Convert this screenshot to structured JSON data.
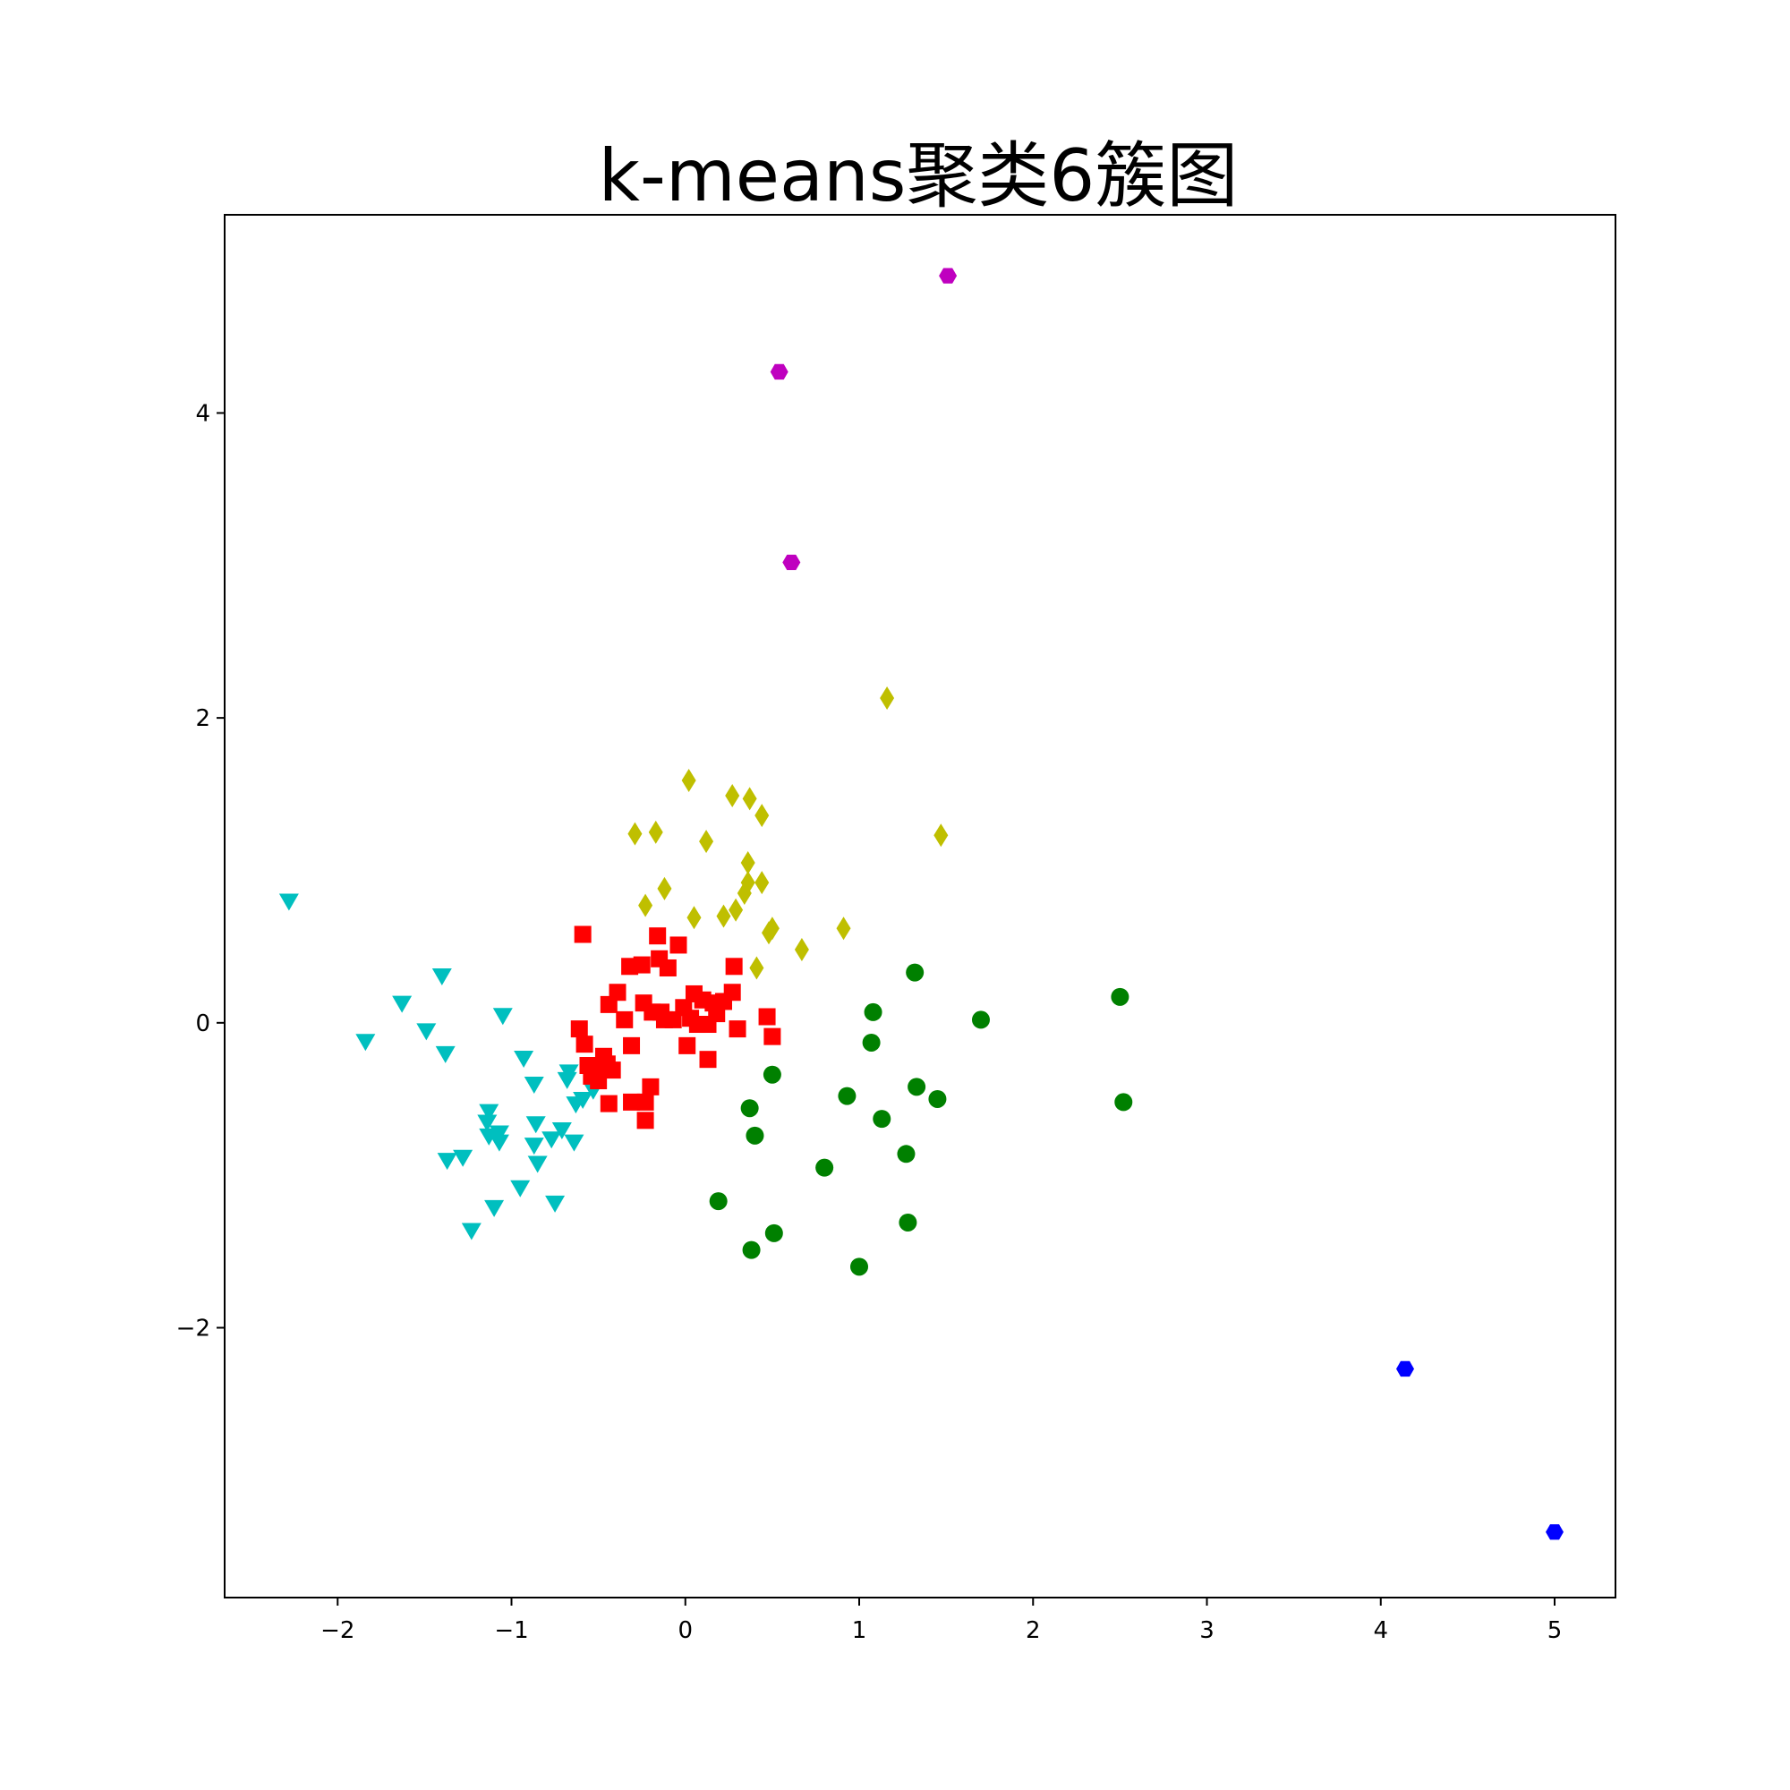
{
  "chart_data": {
    "type": "scatter",
    "title": "k-means聚类6簇图",
    "xlabel": "",
    "ylabel": "",
    "xlim": [
      -2.65,
      5.35
    ],
    "ylim": [
      -3.77,
      5.3
    ],
    "xticks": [
      -2,
      -1,
      0,
      1,
      2,
      3,
      4,
      5
    ],
    "xtick_labels": [
      "−2",
      "−1",
      "0",
      "1",
      "2",
      "3",
      "4",
      "5"
    ],
    "yticks": [
      -2,
      0,
      2,
      4
    ],
    "ytick_labels": [
      "−2",
      "0",
      "2",
      "4"
    ],
    "grid": false,
    "legend": "none",
    "series": [
      {
        "marker": "triangle-down",
        "color": "#00bfbf",
        "points": [
          [
            -2.28,
            0.8
          ],
          [
            -1.84,
            -0.12
          ],
          [
            -1.63,
            0.13
          ],
          [
            -1.49,
            -0.05
          ],
          [
            -1.4,
            0.31
          ],
          [
            -1.38,
            -0.2
          ],
          [
            -1.37,
            -0.9
          ],
          [
            -1.28,
            -0.88
          ],
          [
            -1.23,
            -1.36
          ],
          [
            -1.13,
            -0.58
          ],
          [
            -1.14,
            -0.65
          ],
          [
            -1.13,
            -0.74
          ],
          [
            -1.1,
            -1.21
          ],
          [
            -1.07,
            -0.72
          ],
          [
            -1.05,
            0.05
          ],
          [
            -1.07,
            -0.78
          ],
          [
            -0.95,
            -1.08
          ],
          [
            -0.93,
            -0.23
          ],
          [
            -0.87,
            -0.4
          ],
          [
            -0.86,
            -0.66
          ],
          [
            -0.87,
            -0.8
          ],
          [
            -0.85,
            -0.92
          ],
          [
            -0.77,
            -0.76
          ],
          [
            -0.75,
            -1.18
          ],
          [
            -0.71,
            -0.7
          ],
          [
            -0.67,
            -0.32
          ],
          [
            -0.68,
            -0.37
          ],
          [
            -0.64,
            -0.78
          ],
          [
            -0.63,
            -0.53
          ],
          [
            -0.59,
            -0.5
          ],
          [
            -0.53,
            -0.44
          ]
        ]
      },
      {
        "marker": "square",
        "color": "#ff0000",
        "points": [
          [
            -0.59,
            0.58
          ],
          [
            -0.61,
            -0.04
          ],
          [
            -0.58,
            -0.14
          ],
          [
            -0.56,
            -0.28
          ],
          [
            -0.54,
            -0.35
          ],
          [
            -0.52,
            -0.32
          ],
          [
            -0.5,
            -0.38
          ],
          [
            -0.47,
            -0.22
          ],
          [
            -0.45,
            -0.27
          ],
          [
            -0.44,
            0.12
          ],
          [
            -0.44,
            -0.53
          ],
          [
            -0.42,
            -0.31
          ],
          [
            -0.39,
            0.2
          ],
          [
            -0.35,
            0.02
          ],
          [
            -0.32,
            0.37
          ],
          [
            -0.31,
            -0.15
          ],
          [
            -0.31,
            -0.52
          ],
          [
            -0.25,
            0.38
          ],
          [
            -0.24,
            0.13
          ],
          [
            -0.23,
            -0.52
          ],
          [
            -0.23,
            -0.64
          ],
          [
            -0.2,
            -0.42
          ],
          [
            -0.19,
            0.07
          ],
          [
            -0.16,
            0.57
          ],
          [
            -0.15,
            0.42
          ],
          [
            -0.14,
            0.07
          ],
          [
            -0.12,
            0.02
          ],
          [
            -0.1,
            0.36
          ],
          [
            -0.07,
            0.02
          ],
          [
            -0.04,
            0.51
          ],
          [
            -0.01,
            0.1
          ],
          [
            0.01,
            -0.15
          ],
          [
            0.03,
            0.03
          ],
          [
            0.05,
            0.19
          ],
          [
            0.07,
            -0.01
          ],
          [
            0.1,
            0.15
          ],
          [
            0.13,
            -0.01
          ],
          [
            0.13,
            -0.24
          ],
          [
            0.16,
            0.13
          ],
          [
            0.18,
            0.06
          ],
          [
            0.22,
            0.14
          ],
          [
            0.27,
            0.2
          ],
          [
            0.28,
            0.37
          ],
          [
            0.3,
            -0.04
          ],
          [
            0.47,
            0.04
          ],
          [
            0.5,
            -0.09
          ]
        ]
      },
      {
        "marker": "diamond",
        "color": "#bfbf00",
        "points": [
          [
            -0.29,
            1.24
          ],
          [
            -0.23,
            0.77
          ],
          [
            -0.17,
            1.25
          ],
          [
            -0.12,
            0.88
          ],
          [
            0.02,
            1.59
          ],
          [
            0.05,
            0.69
          ],
          [
            0.12,
            1.19
          ],
          [
            0.22,
            0.7
          ],
          [
            0.27,
            1.49
          ],
          [
            0.29,
            0.74
          ],
          [
            0.34,
            0.85
          ],
          [
            0.36,
            0.92
          ],
          [
            0.36,
            1.05
          ],
          [
            0.37,
            1.47
          ],
          [
            0.41,
            0.36
          ],
          [
            0.44,
            0.92
          ],
          [
            0.44,
            1.36
          ],
          [
            0.48,
            0.59
          ],
          [
            0.5,
            0.62
          ],
          [
            0.67,
            0.48
          ],
          [
            0.91,
            0.62
          ],
          [
            1.16,
            2.13
          ],
          [
            1.47,
            1.23
          ]
        ]
      },
      {
        "marker": "circle",
        "color": "#008000",
        "points": [
          [
            0.19,
            -1.17
          ],
          [
            0.37,
            -0.56
          ],
          [
            0.38,
            -1.49
          ],
          [
            0.4,
            -0.74
          ],
          [
            0.5,
            -0.34
          ],
          [
            0.51,
            -1.38
          ],
          [
            0.8,
            -0.95
          ],
          [
            0.93,
            -0.48
          ],
          [
            1.0,
            -1.6
          ],
          [
            1.08,
            0.07
          ],
          [
            1.07,
            -0.13
          ],
          [
            1.13,
            -0.63
          ],
          [
            1.27,
            -0.86
          ],
          [
            1.28,
            -1.31
          ],
          [
            1.32,
            0.33
          ],
          [
            1.33,
            -0.42
          ],
          [
            1.45,
            -0.5
          ],
          [
            1.7,
            0.02
          ],
          [
            2.5,
            0.17
          ],
          [
            2.52,
            -0.52
          ]
        ]
      },
      {
        "marker": "hexagon",
        "color": "#bf00bf",
        "points": [
          [
            0.54,
            4.27
          ],
          [
            0.61,
            3.02
          ],
          [
            1.51,
            4.9
          ]
        ]
      },
      {
        "marker": "hexagon",
        "color": "#0000ff",
        "points": [
          [
            4.14,
            -2.27
          ],
          [
            5.0,
            -3.34
          ]
        ]
      }
    ]
  }
}
